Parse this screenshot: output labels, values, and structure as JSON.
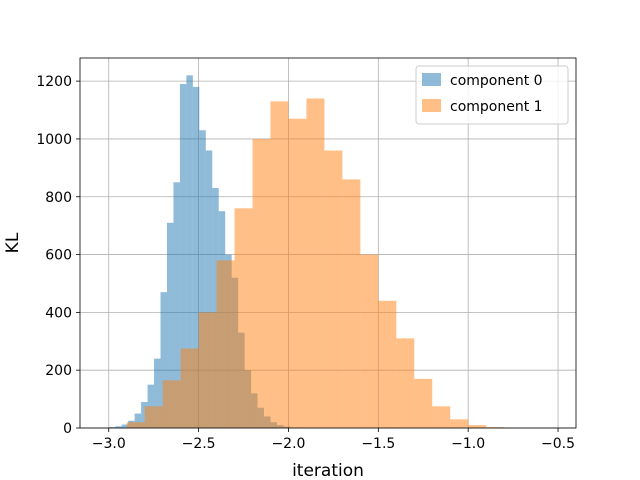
{
  "chart_data": {
    "type": "histogram",
    "title": "",
    "xlabel": "iteration",
    "ylabel": "KL",
    "xlim": [
      -3.16,
      -0.4
    ],
    "ylim": [
      0,
      1280
    ],
    "xticks": [
      -3.0,
      -2.5,
      -2.0,
      -1.5,
      -1.0,
      -0.5
    ],
    "xtick_labels": [
      "−3.0",
      "−2.5",
      "−2.0",
      "−1.5",
      "−1.0",
      "−0.5"
    ],
    "yticks": [
      0,
      200,
      400,
      600,
      800,
      1000,
      1200
    ],
    "ytick_labels": [
      "0",
      "200",
      "400",
      "600",
      "800",
      "1000",
      "1200"
    ],
    "grid": true,
    "legend_position": "top-right",
    "series": [
      {
        "name": "component 0",
        "color": "#1f77b4",
        "alpha": 0.5,
        "bin_edges": [
          -3.0,
          -2.964,
          -2.928,
          -2.892,
          -2.856,
          -2.82,
          -2.784,
          -2.748,
          -2.712,
          -2.676,
          -2.64,
          -2.604,
          -2.568,
          -2.532,
          -2.496,
          -2.46,
          -2.424,
          -2.388,
          -2.352,
          -2.316,
          -2.28,
          -2.244,
          -2.208,
          -2.172,
          -2.136,
          -2.1,
          -2.064,
          -2.028,
          -1.992,
          -1.956,
          -1.92
        ],
        "counts": [
          3,
          6,
          12,
          25,
          50,
          90,
          150,
          240,
          470,
          710,
          850,
          1190,
          1220,
          1180,
          1030,
          960,
          830,
          750,
          600,
          520,
          330,
          200,
          120,
          70,
          40,
          20,
          10,
          5,
          2,
          1
        ]
      },
      {
        "name": "component 1",
        "color": "#ff7f0e",
        "alpha": 0.5,
        "bin_edges": [
          -3.0,
          -2.9,
          -2.8,
          -2.7,
          -2.6,
          -2.5,
          -2.4,
          -2.3,
          -2.2,
          -2.1,
          -2.0,
          -1.9,
          -1.8,
          -1.7,
          -1.6,
          -1.5,
          -1.4,
          -1.3,
          -1.2,
          -1.1,
          -1.0,
          -0.9,
          -0.8
        ],
        "counts": [
          0,
          20,
          75,
          165,
          275,
          400,
          580,
          760,
          1000,
          1130,
          1070,
          1140,
          960,
          860,
          600,
          440,
          310,
          170,
          75,
          30,
          10,
          3
        ]
      }
    ]
  }
}
